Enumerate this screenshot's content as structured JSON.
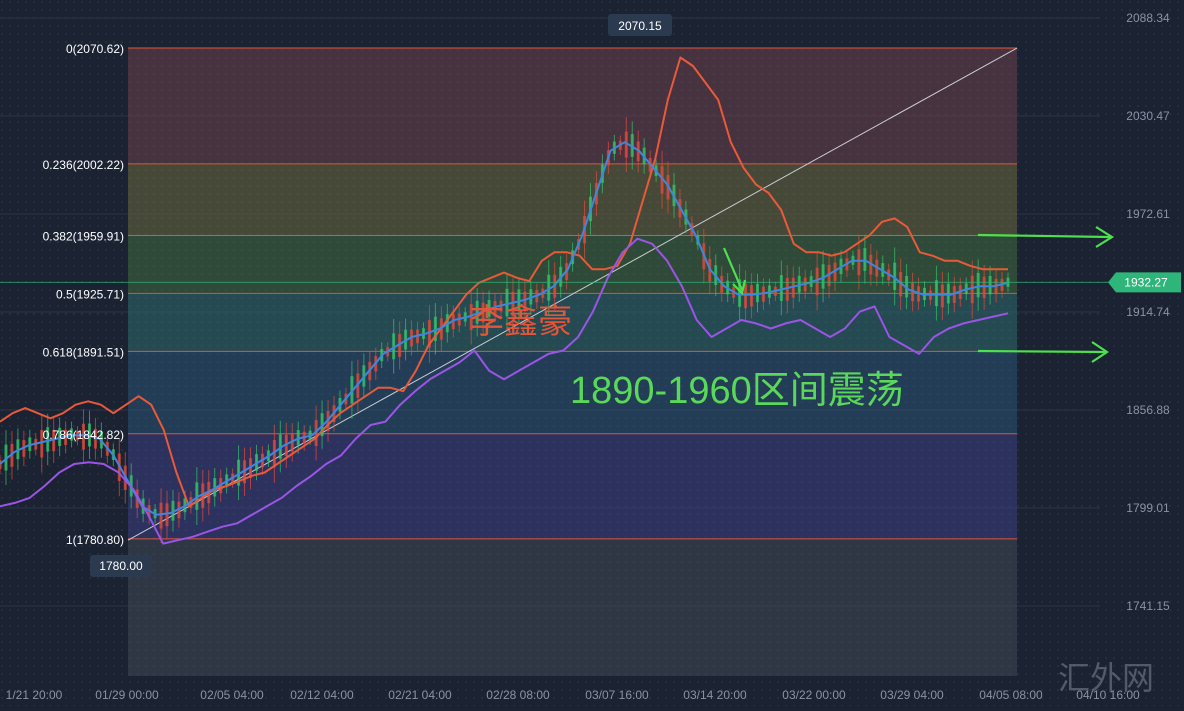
{
  "chart_data": {
    "type": "line",
    "title": "",
    "watermark": "汇外网",
    "author_label": "李鑫豪",
    "annotation": "1890-1960区间震荡",
    "y_axis": {
      "ticks": [
        2088.34,
        2030.47,
        1972.61,
        1914.74,
        1856.88,
        1799.01,
        1741.15
      ],
      "tick_labels": [
        "2088.34",
        "2030.47",
        "1972.61",
        "1914.74",
        "1856.88",
        "1799.01",
        "1741.15"
      ],
      "range": [
        1695,
        2100
      ]
    },
    "x_axis": {
      "tick_labels": [
        "1/21 20:00",
        "01/29 00:00",
        "02/05 04:00",
        "02/12 04:00",
        "02/21 04:00",
        "02/28 08:00",
        "03/07 16:00",
        "03/14 20:00",
        "03/22 00:00",
        "03/29 04:00",
        "04/05 08:00",
        "04/10 16:00"
      ]
    },
    "fibonacci_levels": [
      {
        "ratio": "0",
        "price": 2070.62,
        "label": "0(2070.62)",
        "color": "#6b3f4a"
      },
      {
        "ratio": "0.236",
        "price": 2002.22,
        "label": "0.236(2002.22)",
        "color": "#6b6a3e"
      },
      {
        "ratio": "0.382",
        "price": 1959.91,
        "label": "0.382(1959.91)",
        "color": "#3f6b3e"
      },
      {
        "ratio": "0.5",
        "price": 1925.71,
        "label": "0.5(1925.71)",
        "color": "#2f6b6e"
      },
      {
        "ratio": "0.618",
        "price": 1891.51,
        "label": "0.618(1891.51)",
        "color": "#2b5375"
      },
      {
        "ratio": "0.786",
        "price": 1842.82,
        "label": "0.786(1842.82)",
        "color": "#3b3f82"
      },
      {
        "ratio": "1",
        "price": 1780.8,
        "label": "1(1780.80)",
        "color": "#5a3a82"
      }
    ],
    "high_marker": {
      "price": 2070.15,
      "label": "2070.15"
    },
    "low_marker": {
      "price": 1780.0,
      "label": "1780.00"
    },
    "last_price": {
      "price": 1932.27,
      "label": "1932.27"
    },
    "trend_line": {
      "from_price": 1780.0,
      "to_price": 2070.62
    },
    "series": [
      {
        "name": "",
        "color": "#e85a3a",
        "values": [
          1850,
          1855,
          1858,
          1855,
          1852,
          1855,
          1860,
          1862,
          1860,
          1855,
          1860,
          1865,
          1860,
          1845,
          1820,
          1800,
          1805,
          1810,
          1812,
          1815,
          1818,
          1820,
          1825,
          1830,
          1835,
          1840,
          1848,
          1855,
          1860,
          1865,
          1870,
          1870,
          1868,
          1880,
          1895,
          1905,
          1915,
          1925,
          1932,
          1935,
          1938,
          1935,
          1933,
          1945,
          1950,
          1950,
          1948,
          1940,
          1940,
          1942,
          1955,
          1980,
          2005,
          2040,
          2065,
          2060,
          2050,
          2040,
          2015,
          2000,
          1990,
          1985,
          1975,
          1955,
          1950,
          1950,
          1948,
          1950,
          1955,
          1960,
          1968,
          1970,
          1965,
          1950,
          1948,
          1945,
          1945,
          1942,
          1940,
          1940,
          1940
        ]
      },
      {
        "name": "",
        "color": "#3e86e0",
        "values": [
          1825,
          1832,
          1836,
          1838,
          1840,
          1842,
          1842,
          1840,
          1830,
          1815,
          1800,
          1795,
          1796,
          1800,
          1806,
          1810,
          1815,
          1820,
          1825,
          1830,
          1836,
          1840,
          1842,
          1850,
          1860,
          1870,
          1880,
          1890,
          1895,
          1900,
          1902,
          1905,
          1910,
          1912,
          1915,
          1918,
          1920,
          1922,
          1925,
          1930,
          1940,
          1960,
          1985,
          2010,
          2015,
          2010,
          2000,
          1990,
          1975,
          1960,
          1940,
          1930,
          1925,
          1925,
          1926,
          1928,
          1930,
          1932,
          1935,
          1940,
          1945,
          1945,
          1940,
          1935,
          1928,
          1925,
          1925,
          1925,
          1928,
          1930,
          1930,
          1932
        ]
      },
      {
        "name": "",
        "color": "#9a55e6",
        "values": [
          1800,
          1802,
          1805,
          1812,
          1820,
          1825,
          1826,
          1825,
          1820,
          1810,
          1795,
          1778,
          1780,
          1782,
          1785,
          1788,
          1790,
          1795,
          1800,
          1805,
          1812,
          1818,
          1825,
          1830,
          1840,
          1848,
          1850,
          1860,
          1868,
          1875,
          1880,
          1885,
          1892,
          1880,
          1875,
          1880,
          1885,
          1890,
          1892,
          1900,
          1915,
          1935,
          1950,
          1958,
          1955,
          1945,
          1930,
          1910,
          1900,
          1905,
          1910,
          1908,
          1905,
          1908,
          1910,
          1905,
          1900,
          1905,
          1915,
          1918,
          1900,
          1895,
          1890,
          1900,
          1905,
          1908,
          1910,
          1912,
          1914
        ]
      }
    ]
  }
}
